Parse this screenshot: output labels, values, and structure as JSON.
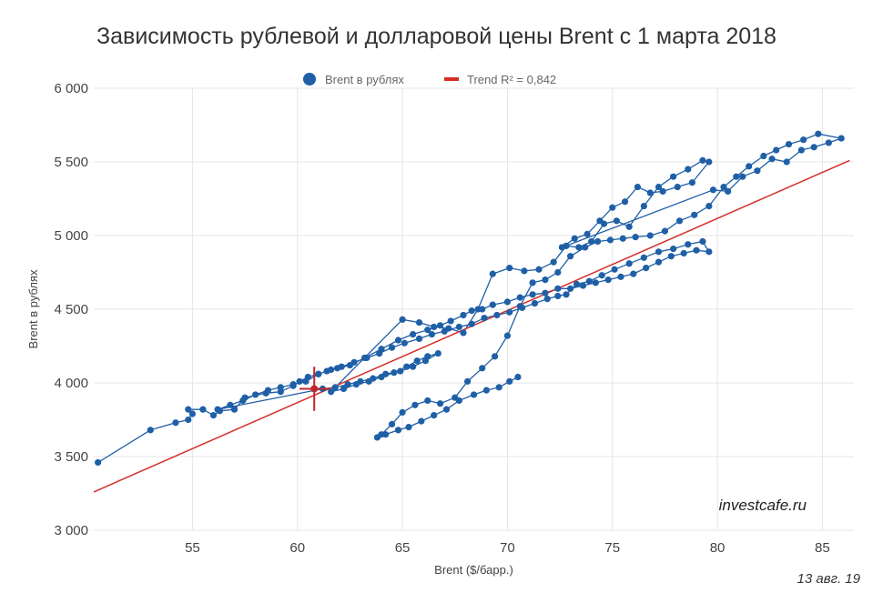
{
  "chart_data": {
    "type": "scatter",
    "title": "Зависимость рублевой и долларовой цены Brent с 1 марта 2018",
    "xlabel": "Brent ($/барр.)",
    "ylabel": "Brent в рублях",
    "xlim": [
      50.3,
      86.5
    ],
    "ylim": [
      3000,
      6000
    ],
    "x_ticks": [
      55,
      60,
      65,
      70,
      75,
      80,
      85
    ],
    "y_ticks": [
      3000,
      3500,
      4000,
      4500,
      5000,
      5500,
      6000
    ],
    "x_tick_labels": [
      "55",
      "60",
      "65",
      "70",
      "75",
      "80",
      "85"
    ],
    "y_tick_labels": [
      "3 000",
      "3 500",
      "4 000",
      "4 500",
      "5 000",
      "5 500",
      "6 000"
    ],
    "grid": true,
    "legend_position": "top-center",
    "series": [
      {
        "name": "Brent в рублях",
        "kind": "points-connected",
        "color": "#1f5fa6",
        "points": [
          [
            50.5,
            3460
          ],
          [
            53.0,
            3680
          ],
          [
            54.2,
            3730
          ],
          [
            54.8,
            3750
          ],
          [
            55.0,
            3790
          ],
          [
            54.8,
            3820
          ],
          [
            55.5,
            3820
          ],
          [
            56.0,
            3780
          ],
          [
            56.3,
            3810
          ],
          [
            57.0,
            3820
          ],
          [
            57.5,
            3900
          ],
          [
            58.5,
            3930
          ],
          [
            59.2,
            3940
          ],
          [
            59.8,
            3980
          ],
          [
            60.1,
            4010
          ],
          [
            60.5,
            4040
          ],
          [
            61.0,
            4060
          ],
          [
            61.4,
            4080
          ],
          [
            61.9,
            4100
          ],
          [
            62.5,
            4120
          ],
          [
            63.2,
            4170
          ],
          [
            64.0,
            4230
          ],
          [
            64.8,
            4290
          ],
          [
            65.5,
            4330
          ],
          [
            66.2,
            4360
          ],
          [
            66.8,
            4390
          ],
          [
            67.3,
            4420
          ],
          [
            67.9,
            4460
          ],
          [
            68.3,
            4490
          ],
          [
            68.8,
            4500
          ],
          [
            69.3,
            4530
          ],
          [
            70.0,
            4550
          ],
          [
            70.6,
            4580
          ],
          [
            71.2,
            4600
          ],
          [
            71.8,
            4610
          ],
          [
            72.4,
            4640
          ],
          [
            73.0,
            4640
          ],
          [
            73.6,
            4660
          ],
          [
            74.2,
            4680
          ],
          [
            74.8,
            4700
          ],
          [
            75.4,
            4720
          ],
          [
            76.0,
            4740
          ],
          [
            76.6,
            4780
          ],
          [
            77.2,
            4820
          ],
          [
            77.8,
            4860
          ],
          [
            78.4,
            4880
          ],
          [
            79.0,
            4900
          ],
          [
            79.6,
            4890
          ],
          [
            79.3,
            4960
          ],
          [
            78.6,
            4940
          ],
          [
            77.9,
            4910
          ],
          [
            77.2,
            4890
          ],
          [
            76.5,
            4850
          ],
          [
            75.8,
            4810
          ],
          [
            75.1,
            4770
          ],
          [
            74.5,
            4730
          ],
          [
            73.9,
            4690
          ],
          [
            73.3,
            4670
          ],
          [
            72.8,
            4600
          ],
          [
            72.4,
            4590
          ],
          [
            71.9,
            4570
          ],
          [
            71.3,
            4540
          ],
          [
            70.7,
            4510
          ],
          [
            70.1,
            4480
          ],
          [
            69.5,
            4460
          ],
          [
            68.9,
            4440
          ],
          [
            68.3,
            4400
          ],
          [
            67.7,
            4380
          ],
          [
            67.0,
            4350
          ],
          [
            66.4,
            4330
          ],
          [
            65.8,
            4300
          ],
          [
            65.1,
            4270
          ],
          [
            64.5,
            4240
          ],
          [
            63.9,
            4200
          ],
          [
            63.3,
            4170
          ],
          [
            62.7,
            4140
          ],
          [
            62.1,
            4110
          ],
          [
            61.6,
            4090
          ],
          [
            61.0,
            4060
          ],
          [
            60.4,
            4010
          ],
          [
            59.8,
            3990
          ],
          [
            59.2,
            3970
          ],
          [
            58.6,
            3950
          ],
          [
            58.0,
            3920
          ],
          [
            57.4,
            3880
          ],
          [
            56.8,
            3850
          ],
          [
            56.2,
            3820
          ],
          [
            61.2,
            3960
          ],
          [
            61.8,
            3970
          ],
          [
            62.4,
            3990
          ],
          [
            63.0,
            4010
          ],
          [
            63.6,
            4030
          ],
          [
            64.2,
            4060
          ],
          [
            64.9,
            4080
          ],
          [
            65.5,
            4110
          ],
          [
            66.1,
            4150
          ],
          [
            66.7,
            4200
          ],
          [
            66.2,
            4180
          ],
          [
            65.7,
            4150
          ],
          [
            65.2,
            4110
          ],
          [
            64.6,
            4070
          ],
          [
            64.0,
            4040
          ],
          [
            63.4,
            4010
          ],
          [
            62.8,
            3990
          ],
          [
            62.2,
            3960
          ],
          [
            61.6,
            3940
          ],
          [
            65.0,
            4430
          ],
          [
            65.8,
            4410
          ],
          [
            66.5,
            4380
          ],
          [
            67.2,
            4370
          ],
          [
            67.9,
            4340
          ],
          [
            68.6,
            4500
          ],
          [
            69.3,
            4740
          ],
          [
            70.1,
            4780
          ],
          [
            70.8,
            4760
          ],
          [
            71.5,
            4770
          ],
          [
            72.2,
            4820
          ],
          [
            72.8,
            4930
          ],
          [
            73.4,
            4920
          ],
          [
            74.0,
            4960
          ],
          [
            74.6,
            5080
          ],
          [
            75.2,
            5100
          ],
          [
            75.8,
            5060
          ],
          [
            76.5,
            5200
          ],
          [
            77.2,
            5330
          ],
          [
            77.9,
            5400
          ],
          [
            78.6,
            5450
          ],
          [
            79.3,
            5510
          ],
          [
            79.6,
            5500
          ],
          [
            78.8,
            5360
          ],
          [
            78.1,
            5330
          ],
          [
            77.4,
            5300
          ],
          [
            76.8,
            5290
          ],
          [
            76.2,
            5330
          ],
          [
            75.6,
            5230
          ],
          [
            75.0,
            5190
          ],
          [
            74.4,
            5100
          ],
          [
            73.8,
            5010
          ],
          [
            73.2,
            4980
          ],
          [
            72.6,
            4920
          ],
          [
            79.8,
            5310
          ],
          [
            80.5,
            5300
          ],
          [
            81.2,
            5400
          ],
          [
            81.9,
            5440
          ],
          [
            82.6,
            5520
          ],
          [
            83.3,
            5500
          ],
          [
            84.0,
            5580
          ],
          [
            84.6,
            5600
          ],
          [
            85.3,
            5630
          ],
          [
            85.9,
            5660
          ],
          [
            84.8,
            5690
          ],
          [
            84.1,
            5650
          ],
          [
            83.4,
            5620
          ],
          [
            82.8,
            5580
          ],
          [
            82.2,
            5540
          ],
          [
            81.5,
            5470
          ],
          [
            80.9,
            5400
          ],
          [
            80.3,
            5330
          ],
          [
            79.6,
            5200
          ],
          [
            78.9,
            5140
          ],
          [
            78.2,
            5100
          ],
          [
            77.5,
            5030
          ],
          [
            76.8,
            5000
          ],
          [
            76.1,
            4990
          ],
          [
            75.5,
            4980
          ],
          [
            74.9,
            4970
          ],
          [
            74.3,
            4960
          ],
          [
            73.7,
            4920
          ],
          [
            73.0,
            4860
          ],
          [
            72.4,
            4750
          ],
          [
            71.8,
            4700
          ],
          [
            71.2,
            4680
          ],
          [
            70.6,
            4520
          ],
          [
            70.0,
            4320
          ],
          [
            69.4,
            4180
          ],
          [
            68.8,
            4100
          ],
          [
            68.1,
            4010
          ],
          [
            67.5,
            3900
          ],
          [
            66.8,
            3860
          ],
          [
            66.2,
            3880
          ],
          [
            65.6,
            3850
          ],
          [
            65.0,
            3800
          ],
          [
            64.5,
            3720
          ],
          [
            64.0,
            3650
          ],
          [
            63.8,
            3630
          ],
          [
            64.2,
            3650
          ],
          [
            64.8,
            3680
          ],
          [
            65.3,
            3700
          ],
          [
            65.9,
            3740
          ],
          [
            66.5,
            3780
          ],
          [
            67.1,
            3820
          ],
          [
            67.7,
            3880
          ],
          [
            68.4,
            3920
          ],
          [
            69.0,
            3950
          ],
          [
            69.6,
            3970
          ],
          [
            70.1,
            4010
          ],
          [
            70.5,
            4040
          ]
        ]
      },
      {
        "name": "Trend R² = 0,842",
        "kind": "line",
        "color": "#d42e27",
        "points": [
          [
            50.3,
            3260
          ],
          [
            86.3,
            5510
          ]
        ]
      },
      {
        "name": "",
        "kind": "current-point",
        "color": "#c0262b",
        "points": [
          [
            60.8,
            3960
          ]
        ],
        "error_x": [
          60.1,
          61.5
        ],
        "error_y": [
          3810,
          4110
        ]
      }
    ]
  },
  "legend": {
    "items": [
      {
        "label": "Brent в рублях",
        "color": "#1f5fa6",
        "marker": "circle"
      },
      {
        "label": "Trend R² = 0,842",
        "color": "#d42e27",
        "marker": "line"
      }
    ]
  },
  "watermark": "investcafe.ru",
  "date_note": "13 авг. 19"
}
